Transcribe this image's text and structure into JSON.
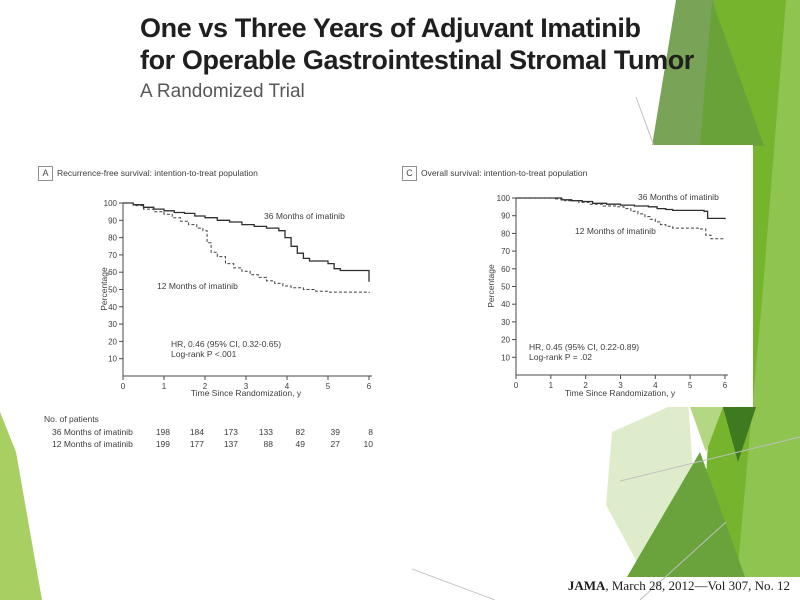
{
  "slide": {
    "title_line1": "One vs Three Years of Adjuvant Imatinib",
    "title_line2": "for Operable Gastrointestinal Stromal Tumor",
    "subtitle": "A Randomized Trial",
    "citation": {
      "journal": "JAMA",
      "rest": ", March 28, 2012—Vol 307, No. 12"
    }
  },
  "colors": {
    "green_bright": "#77b42e",
    "green_light": "#8ec44f",
    "green_olive": "#79a457",
    "green_olive_dark": "#68a238",
    "green_pale": "#dfeccb",
    "green_midlight": "#b4d783",
    "green_dark": "#3d7a20",
    "green_medium": "#6aa33c",
    "green_sliver": "#a8cf62",
    "hairline_gray": "#bfbfbf"
  },
  "figure": {
    "patients_table": {
      "heading": "No. of patients",
      "rows": [
        {
          "label": "36 Months of imatinib",
          "counts": [
            198,
            184,
            173,
            133,
            82,
            39,
            8
          ]
        },
        {
          "label": "12 Months of imatinib",
          "counts": [
            199,
            177,
            137,
            88,
            49,
            27,
            10
          ]
        }
      ]
    }
  },
  "chart_data": [
    {
      "type": "line",
      "subtype": "kaplan-meier-step",
      "panel_label": "A",
      "title": "Recurrence-free survival: intention-to-treat population",
      "xlabel": "Time Since Randomization, y",
      "ylabel": "Percentage",
      "xlim": [
        0,
        6
      ],
      "ylim": [
        0,
        100
      ],
      "xticks": [
        0,
        1,
        2,
        3,
        4,
        5,
        6
      ],
      "yticks": [
        10,
        20,
        30,
        40,
        50,
        60,
        70,
        80,
        90,
        100
      ],
      "grid": false,
      "annotation": [
        "HR, 0.46 (95% CI, 0.32-0.65)",
        "Log-rank P <.001"
      ],
      "series": [
        {
          "name": "36 Months of imatinib",
          "style": "solid",
          "points": [
            [
              0,
              100
            ],
            [
              0.25,
              99
            ],
            [
              0.5,
              97.5
            ],
            [
              0.75,
              96.5
            ],
            [
              1,
              95.5
            ],
            [
              1.25,
              94.5
            ],
            [
              1.5,
              94
            ],
            [
              1.75,
              92.5
            ],
            [
              2,
              91.5
            ],
            [
              2.3,
              90
            ],
            [
              2.6,
              89
            ],
            [
              2.9,
              87.5
            ],
            [
              3.2,
              86.5
            ],
            [
              3.5,
              85.5
            ],
            [
              3.8,
              84
            ],
            [
              3.95,
              80
            ],
            [
              4.1,
              75
            ],
            [
              4.25,
              71
            ],
            [
              4.4,
              68
            ],
            [
              4.55,
              66.5
            ],
            [
              5,
              65
            ],
            [
              5.15,
              62
            ],
            [
              5.3,
              61
            ],
            [
              5.95,
              61
            ],
            [
              6,
              54.5
            ]
          ]
        },
        {
          "name": "12 Months of imatinib",
          "style": "dashed",
          "points": [
            [
              0,
              100
            ],
            [
              0.25,
              98.5
            ],
            [
              0.5,
              96.5
            ],
            [
              0.75,
              95
            ],
            [
              1,
              93.5
            ],
            [
              1.2,
              91.5
            ],
            [
              1.4,
              89.5
            ],
            [
              1.6,
              87.5
            ],
            [
              1.8,
              85.5
            ],
            [
              1.95,
              84
            ],
            [
              2.05,
              77
            ],
            [
              2.15,
              71.5
            ],
            [
              2.3,
              69
            ],
            [
              2.5,
              65
            ],
            [
              2.7,
              62.5
            ],
            [
              2.9,
              60.5
            ],
            [
              3.1,
              58.5
            ],
            [
              3.3,
              57
            ],
            [
              3.5,
              55
            ],
            [
              3.7,
              53.5
            ],
            [
              3.9,
              52
            ],
            [
              4.1,
              51
            ],
            [
              4.4,
              50
            ],
            [
              4.7,
              49
            ],
            [
              5,
              48.5
            ],
            [
              6,
              48
            ]
          ]
        }
      ]
    },
    {
      "type": "line",
      "subtype": "kaplan-meier-step",
      "panel_label": "C",
      "title": "Overall survival: intention-to-treat population",
      "xlabel": "Time Since Randomization, y",
      "ylabel": "Percentage",
      "xlim": [
        0,
        6
      ],
      "ylim": [
        0,
        100
      ],
      "xticks": [
        0,
        1,
        2,
        3,
        4,
        5,
        6
      ],
      "yticks": [
        10,
        20,
        30,
        40,
        50,
        60,
        70,
        80,
        90,
        100
      ],
      "grid": false,
      "annotation": [
        "HR, 0.45 (95% CI, 0.22-0.89)",
        "Log-rank P = .02"
      ],
      "series": [
        {
          "name": "36 Months of imatinib",
          "style": "solid",
          "points": [
            [
              0,
              100
            ],
            [
              1.1,
              100
            ],
            [
              1.3,
              99
            ],
            [
              1.6,
              98.5
            ],
            [
              1.9,
              98
            ],
            [
              2.2,
              97
            ],
            [
              2.6,
              96.5
            ],
            [
              3,
              96
            ],
            [
              3.4,
              95.5
            ],
            [
              3.8,
              95
            ],
            [
              4.05,
              94
            ],
            [
              4.3,
              93.5
            ],
            [
              4.5,
              93
            ],
            [
              5.4,
              92.5
            ],
            [
              5.5,
              88.5
            ],
            [
              6,
              88
            ]
          ]
        },
        {
          "name": "12 Months of imatinib",
          "style": "dashed",
          "points": [
            [
              0,
              100
            ],
            [
              0.9,
              100
            ],
            [
              1.1,
              99.5
            ],
            [
              1.4,
              98.5
            ],
            [
              1.8,
              97.5
            ],
            [
              2.1,
              96.5
            ],
            [
              2.5,
              95.5
            ],
            [
              2.9,
              95
            ],
            [
              3.1,
              94
            ],
            [
              3.3,
              92.5
            ],
            [
              3.5,
              91
            ],
            [
              3.7,
              89.5
            ],
            [
              3.85,
              88
            ],
            [
              4,
              86.5
            ],
            [
              4.15,
              85
            ],
            [
              4.3,
              84
            ],
            [
              4.5,
              83
            ],
            [
              5.3,
              82.5
            ],
            [
              5.45,
              79
            ],
            [
              5.6,
              77
            ],
            [
              6,
              77
            ]
          ]
        }
      ]
    }
  ]
}
